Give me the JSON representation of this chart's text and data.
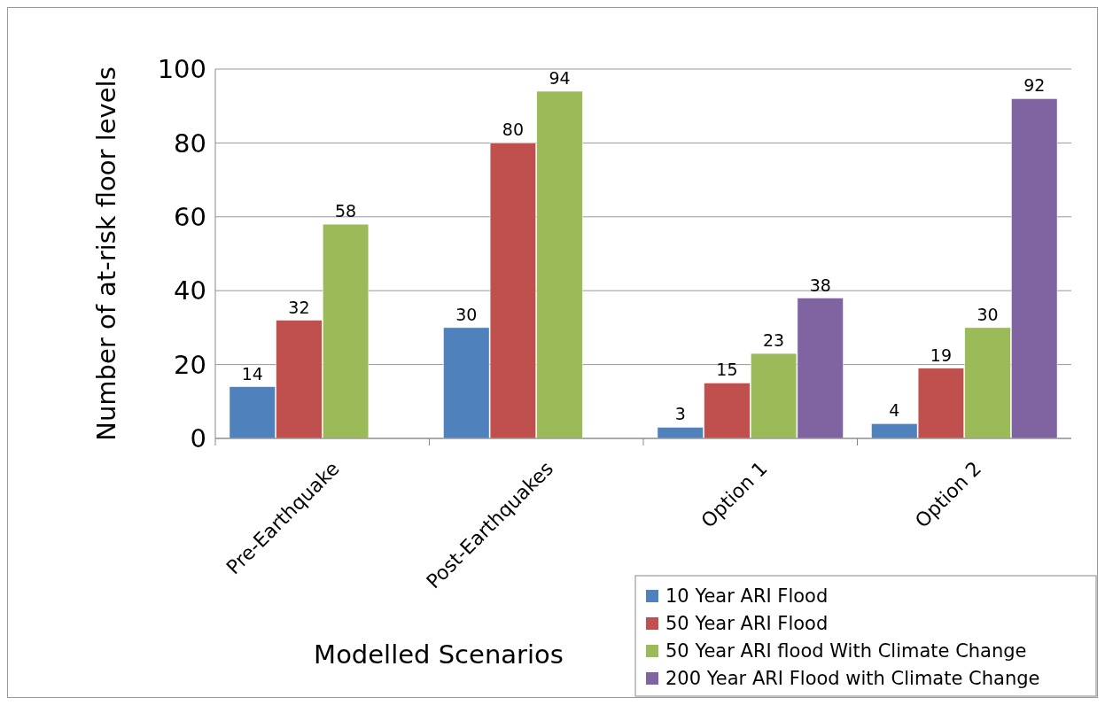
{
  "chart_data": {
    "type": "bar",
    "xlabel": "Modelled Scenarios",
    "ylabel": "Number of at-risk floor levels",
    "categories": [
      "Pre-Earthquake",
      "Post-Earthquakes",
      "Option 1",
      "Option 2"
    ],
    "series": [
      {
        "name": "10 Year ARI Flood",
        "color": "#4f81bd",
        "values": [
          14,
          30,
          3,
          4
        ]
      },
      {
        "name": "50 Year ARI Flood",
        "color": "#c0504d",
        "values": [
          32,
          80,
          15,
          19
        ]
      },
      {
        "name": "50 Year ARI flood With Climate Change",
        "color": "#9bbb59",
        "values": [
          58,
          94,
          23,
          30
        ]
      },
      {
        "name": "200 Year ARI Flood with Climate Change",
        "color": "#8064a2",
        "values": [
          null,
          null,
          38,
          92
        ]
      }
    ],
    "ylim": [
      0,
      100
    ],
    "yticks": [
      0,
      20,
      40,
      60,
      80,
      100
    ],
    "grid": "y",
    "data_labels": true,
    "legend": "bottom right"
  }
}
